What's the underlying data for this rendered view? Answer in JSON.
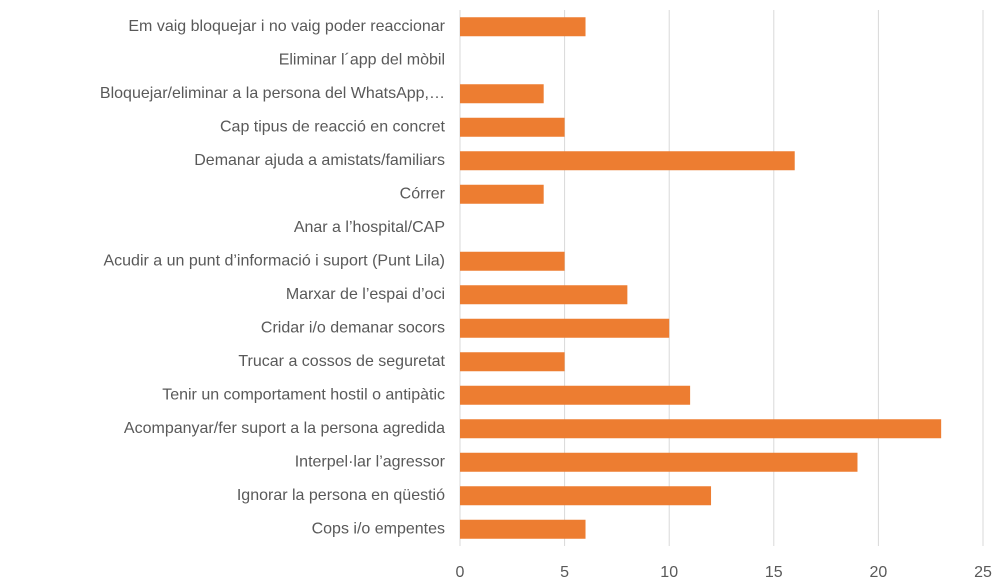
{
  "chart_data": {
    "type": "bar",
    "orientation": "horizontal",
    "categories": [
      "Em vaig bloquejar i no vaig poder reaccionar",
      "Eliminar l´app del mòbil",
      "Bloquejar/eliminar a la persona del WhatsApp,…",
      "Cap tipus de reacció en concret",
      "Demanar ajuda a amistats/familiars",
      "Córrer",
      "Anar a l’hospital/CAP",
      "Acudir a un punt d’informació i suport (Punt Lila)",
      "Marxar de l’espai d’oci",
      "Cridar i/o demanar socors",
      "Trucar a cossos de seguretat",
      "Tenir un comportament hostil o antipàtic",
      "Acompanyar/fer suport a la persona agredida",
      "Interpel·lar l’agressor",
      "Ignorar la persona en qüestió",
      "Cops i/o empentes"
    ],
    "values": [
      6,
      0,
      4,
      5,
      16,
      4,
      0,
      5,
      8,
      10,
      5,
      11,
      23,
      19,
      12,
      6
    ],
    "color": "#ed7d31",
    "xlim": [
      0,
      25
    ],
    "xticks": [
      0,
      5,
      10,
      15,
      20,
      25
    ],
    "grid": true
  }
}
